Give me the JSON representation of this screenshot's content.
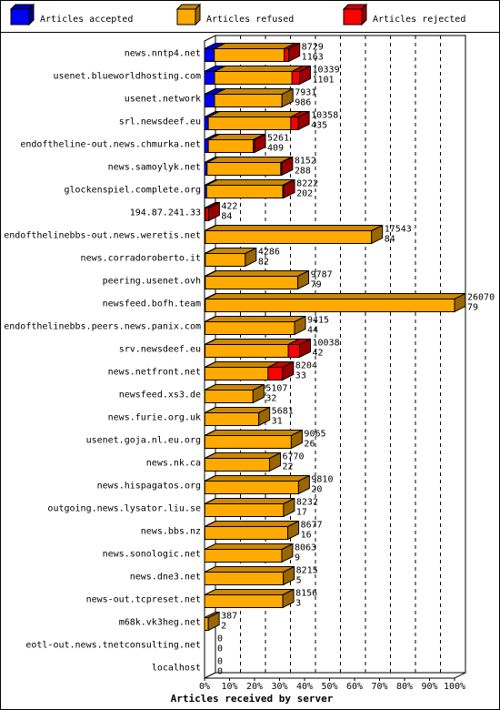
{
  "chart_data": {
    "type": "bar",
    "stacked": true,
    "orientation": "horizontal",
    "style": "3d",
    "xlabel": "Articles received by server",
    "xticks": [
      "0%",
      "10%",
      "20%",
      "30%",
      "40%",
      "50%",
      "60%",
      "70%",
      "80%",
      "90%",
      "100%"
    ],
    "xlim": [
      0,
      100
    ],
    "grid": "vertical dashed",
    "legend_position": "top",
    "series": [
      {
        "name": "Articles accepted",
        "color": "#0000ff"
      },
      {
        "name": "Articles refused",
        "color": "#ffaa00"
      },
      {
        "name": "Articles rejected",
        "color": "#ff0000"
      }
    ],
    "rows": [
      {
        "server": "news.nntp4.net",
        "total": "8729",
        "rejected": "1163",
        "pct": [
          3.9,
          28.0,
          1.8
        ]
      },
      {
        "server": "usenet.blueworldhosting.com",
        "total": "10339",
        "rejected": "1101",
        "pct": [
          4.0,
          31.0,
          3.0
        ]
      },
      {
        "server": "usenet.network",
        "total": "7931",
        "rejected": "986",
        "pct": [
          4.0,
          27.0,
          0.0
        ]
      },
      {
        "server": "srl.newsdeef.eu",
        "total": "10358",
        "rejected": "435",
        "pct": [
          1.5,
          33.0,
          3.0
        ]
      },
      {
        "server": "endoftheline-out.news.chmurka.net",
        "total": "5261",
        "rejected": "409",
        "pct": [
          1.5,
          18.0,
          0.5
        ]
      },
      {
        "server": "news.samoylyk.net",
        "total": "8152",
        "rejected": "288",
        "pct": [
          1.0,
          29.5,
          0.3
        ]
      },
      {
        "server": "glockenspiel.complete.org",
        "total": "8222",
        "rejected": "202",
        "pct": [
          0.8,
          30.5,
          0.2
        ]
      },
      {
        "server": "194.87.241.33",
        "total": "422",
        "rejected": "84",
        "pct": [
          0.3,
          0.0,
          1.3
        ]
      },
      {
        "server": "endofthelinebbs-out.news.weretis.net",
        "total": "17543",
        "rejected": "84",
        "pct": [
          0.3,
          66.5,
          0.0
        ]
      },
      {
        "server": "news.corradoroberto.it",
        "total": "4286",
        "rejected": "82",
        "pct": [
          0.3,
          16.0,
          0.0
        ]
      },
      {
        "server": "peering.usenet.ovh",
        "total": "9787",
        "rejected": "79",
        "pct": [
          0.3,
          37.0,
          0.0
        ]
      },
      {
        "server": "newsfeed.bofh.team",
        "total": "26070",
        "rejected": "79",
        "pct": [
          0.3,
          99.7,
          0.0
        ]
      },
      {
        "server": "endofthelinebbs.peers.news.panix.com",
        "total": "9415",
        "rejected": "44",
        "pct": [
          0.2,
          35.8,
          0.0
        ]
      },
      {
        "server": "srv.newsdeef.eu",
        "total": "10038",
        "rejected": "42",
        "pct": [
          0.2,
          33.3,
          4.5
        ]
      },
      {
        "server": "news.netfront.net",
        "total": "8204",
        "rejected": "33",
        "pct": [
          0.1,
          25.3,
          5.8
        ]
      },
      {
        "server": "newsfeed.xs3.de",
        "total": "5107",
        "rejected": "32",
        "pct": [
          0.1,
          19.3,
          0.0
        ]
      },
      {
        "server": "news.furie.org.uk",
        "total": "5681",
        "rejected": "31",
        "pct": [
          0.1,
          21.6,
          0.0
        ]
      },
      {
        "server": "usenet.goja.nl.eu.org",
        "total": "9065",
        "rejected": "26",
        "pct": [
          0.1,
          34.6,
          0.0
        ]
      },
      {
        "server": "news.nk.ca",
        "total": "6770",
        "rejected": "22",
        "pct": [
          0.1,
          25.9,
          0.0
        ]
      },
      {
        "server": "news.hispagatos.org",
        "total": "9810",
        "rejected": "20",
        "pct": [
          0.1,
          37.5,
          0.0
        ]
      },
      {
        "server": "outgoing.news.lysator.liu.se",
        "total": "8232",
        "rejected": "17",
        "pct": [
          0.1,
          31.5,
          0.0
        ]
      },
      {
        "server": "news.bbs.nz",
        "total": "8677",
        "rejected": "16",
        "pct": [
          0.1,
          33.2,
          0.0
        ]
      },
      {
        "server": "news.sonologic.net",
        "total": "8063",
        "rejected": "9",
        "pct": [
          0.0,
          30.9,
          0.0
        ]
      },
      {
        "server": "news.dne3.net",
        "total": "8215",
        "rejected": "5",
        "pct": [
          0.0,
          31.5,
          0.0
        ]
      },
      {
        "server": "news-out.tcpreset.net",
        "total": "8156",
        "rejected": "3",
        "pct": [
          0.0,
          31.3,
          0.0
        ]
      },
      {
        "server": "m68k.vk3heg.net",
        "total": "387",
        "rejected": "2",
        "pct": [
          0.0,
          1.5,
          0.0
        ]
      },
      {
        "server": "eotl-out.news.tnetconsulting.net",
        "total": "0",
        "rejected": "0",
        "pct": [
          0.0,
          0.0,
          0.0
        ]
      },
      {
        "server": "localhost",
        "total": "0",
        "rejected": "0",
        "pct": [
          0.0,
          0.0,
          0.0
        ]
      }
    ]
  }
}
